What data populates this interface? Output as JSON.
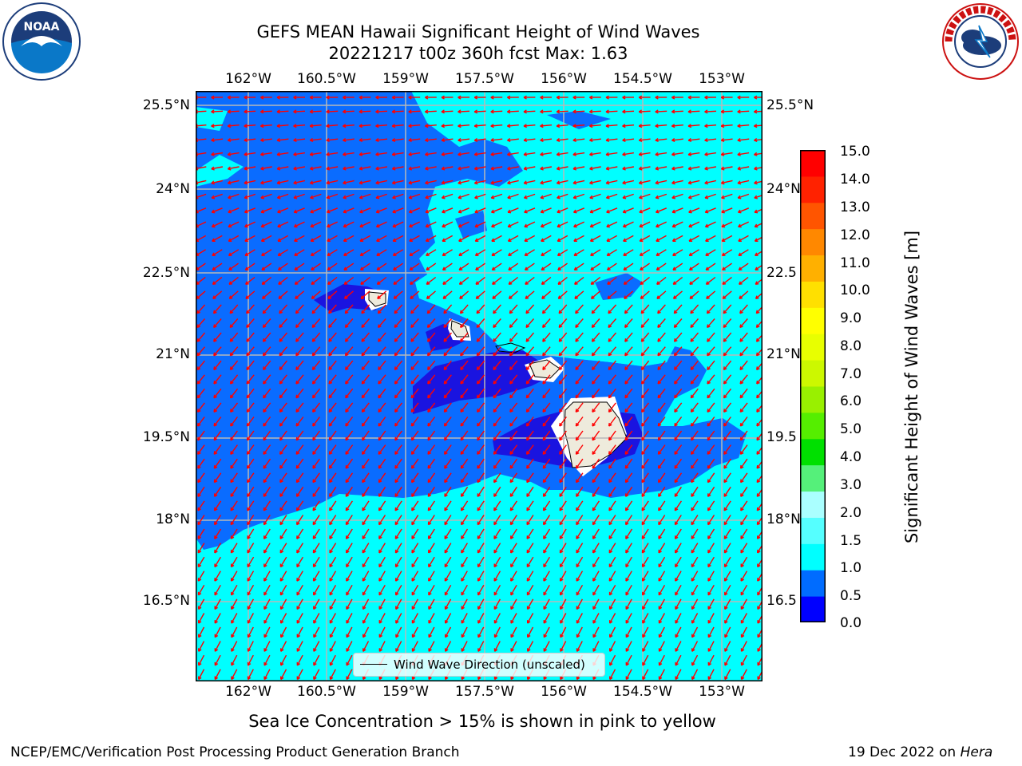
{
  "title": {
    "line1": "GEFS MEAN Hawaii Significant Height of Wind Waves",
    "line2": "20221217 t00z 360h fcst   Max: 1.63"
  },
  "map": {
    "lon_labels": [
      "162°W",
      "160.5°W",
      "159°W",
      "157.5°W",
      "156°W",
      "154.5°W",
      "153°W"
    ],
    "lat_labels": [
      "25.5°N",
      "24°N",
      "22.5°N",
      "21°N",
      "19.5°N",
      "18°N",
      "16.5°N"
    ],
    "lat_labels_right": [
      "25.5°N",
      "24°N",
      "22.5",
      "21°N",
      "19.5",
      "18°N",
      "16.5"
    ],
    "legend": "Wind Wave Direction (unscaled)",
    "arrow_color": "#ff0000",
    "ocean_colors": {
      "light": "#00ffff",
      "medium": "#0a6cff",
      "deep": "#1a14e0",
      "land": "#eeebdc"
    }
  },
  "colorbar": {
    "title": "Significant Height of Wind Waves [m]",
    "labels": [
      "15.0",
      "14.0",
      "13.0",
      "12.0",
      "11.0",
      "10.0",
      "9.0",
      "8.0",
      "7.0",
      "6.0",
      "5.0",
      "4.0",
      "3.0",
      "2.0",
      "1.5",
      "1.0",
      "0.5",
      "0.0"
    ],
    "colors": [
      "#0000ff",
      "#006cff",
      "#00ffff",
      "#55ffff",
      "#aaffff",
      "#55f07a",
      "#00e000",
      "#55ee00",
      "#99f000",
      "#ccf800",
      "#e8ff00",
      "#ffff00",
      "#ffe000",
      "#ffb000",
      "#ff8800",
      "#ff5500",
      "#ff2200",
      "#ff0000"
    ]
  },
  "caption": "Sea Ice Concentration > 15% is shown in pink to yellow",
  "footer": {
    "left": "NCEP/EMC/Verification Post Processing Product Generation Branch",
    "right_prefix": "19 Dec 2022 on ",
    "right_host": "Hera"
  }
}
